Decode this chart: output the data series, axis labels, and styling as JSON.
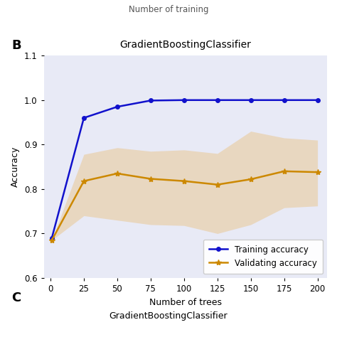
{
  "title": "GradientBoostingClassifier",
  "xlabel": "Number of trees",
  "ylabel": "Accuracy",
  "top_label": "Number of training",
  "panel_label_b": "B",
  "panel_label_c": "C",
  "bottom_title": "GradientBoostingClassifier",
  "background_color": "#e8eaf6",
  "train_x": [
    1,
    25,
    50,
    75,
    100,
    125,
    150,
    175,
    200
  ],
  "train_y": [
    0.69,
    0.96,
    0.985,
    0.999,
    1.0,
    1.0,
    1.0,
    1.0,
    1.0
  ],
  "val_x": [
    1,
    25,
    50,
    75,
    100,
    125,
    150,
    175,
    200
  ],
  "val_y": [
    0.685,
    0.818,
    0.835,
    0.823,
    0.818,
    0.81,
    0.822,
    0.84,
    0.838
  ],
  "val_upper": [
    0.685,
    0.878,
    0.893,
    0.885,
    0.888,
    0.88,
    0.93,
    0.915,
    0.91
  ],
  "val_lower": [
    0.685,
    0.74,
    0.73,
    0.72,
    0.718,
    0.7,
    0.72,
    0.758,
    0.762
  ],
  "train_color": "#1111cc",
  "val_color": "#cc8800",
  "fill_color": "#e8c080",
  "fill_alpha": 0.45,
  "ylim": [
    0.6,
    1.1
  ],
  "xlim": [
    -5,
    207
  ],
  "xticks": [
    0,
    25,
    50,
    75,
    100,
    125,
    150,
    175,
    200
  ],
  "yticks": [
    0.6,
    0.7,
    0.8,
    0.9,
    1.0,
    1.1
  ],
  "legend_train": "Training accuracy",
  "legend_val": "Validating accuracy",
  "figsize": [
    4.74,
    4.74
  ],
  "dpi": 100
}
